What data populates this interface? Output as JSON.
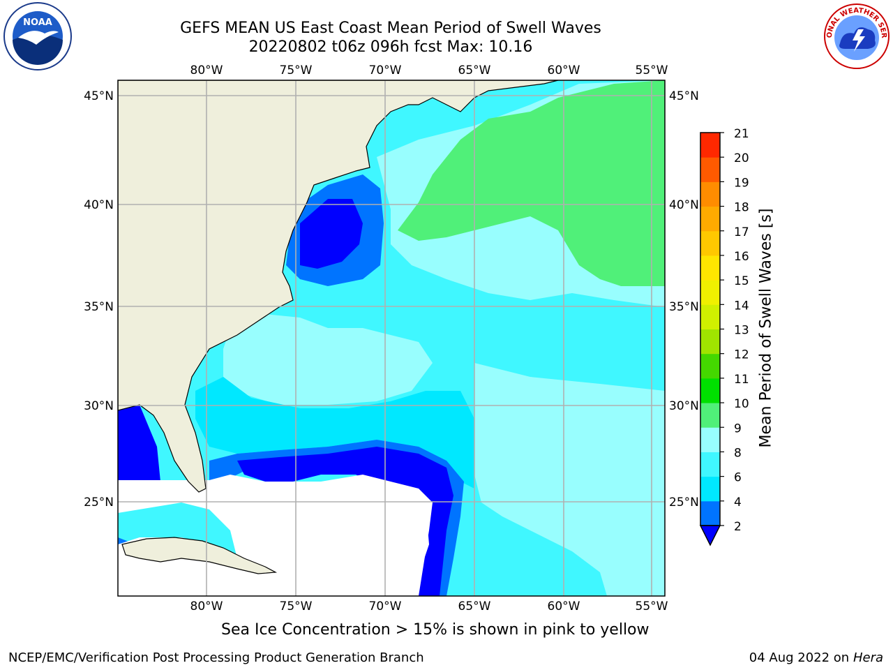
{
  "title": {
    "line1": "GEFS MEAN US East Coast Mean Period of Swell Waves",
    "line2": "20220802 t06z 096h fcst   Max: 10.16"
  },
  "map": {
    "lon_labels": [
      "80°W",
      "75°W",
      "70°W",
      "65°W",
      "60°W",
      "55°W"
    ],
    "lat_labels": [
      "45°N",
      "40°N",
      "35°N",
      "30°N",
      "25°N"
    ],
    "colors": {
      "land": "#efefdc",
      "grid": "#b0b0b0",
      "c_lt2": "#0000ff",
      "c_2_4": "#0074ff",
      "c_4_6": "#00e8ff",
      "c_6_8": "#40f7ff",
      "c_8_9": "#98fefe",
      "c_9_10": "#50f079",
      "masked": "#ffffff"
    }
  },
  "colorbar": {
    "label": "Mean Period of Swell Waves [s]",
    "ticks": [
      "2",
      "4",
      "6",
      "8",
      "9",
      "10",
      "11",
      "12",
      "13",
      "14",
      "15",
      "16",
      "17",
      "18",
      "19",
      "20",
      "21"
    ],
    "colors": [
      "#0074ff",
      "#00e8ff",
      "#40f7ff",
      "#98fefe",
      "#50f079",
      "#00e000",
      "#44d800",
      "#a0e400",
      "#d0f000",
      "#f0f000",
      "#ffe600",
      "#ffc800",
      "#ffaa00",
      "#ff8c00",
      "#ff5a00",
      "#ff2800"
    ],
    "under_color": "#0000ff"
  },
  "notes": {
    "ice": "Sea Ice Concentration > 15% is shown in pink to yellow",
    "footer_left": "NCEP/EMC/Verification Post Processing Product Generation Branch",
    "footer_right_date": "04 Aug 2022 on",
    "footer_right_host": "Hera"
  },
  "logos": {
    "noaa_text": "NOAA",
    "nws_text": "NATIONAL WEATHER SERVICE"
  }
}
